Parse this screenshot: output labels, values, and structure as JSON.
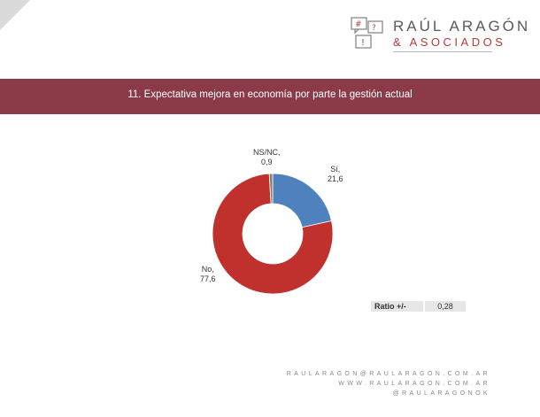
{
  "brand": {
    "name": "RAÚL ARAGÓN",
    "sub": "& ASOCIADOS",
    "accent_color": "#b13a3a"
  },
  "banner": {
    "title": "11. Expectativa mejora en economía por parte la gestión actual",
    "color": "#8b3a48"
  },
  "chart_data": {
    "type": "pie",
    "variant": "donut",
    "slices": [
      {
        "label": "Sí",
        "value": 21.6,
        "value_text": "21,6",
        "color": "#4f81bd"
      },
      {
        "label": "No",
        "value": 77.6,
        "value_text": "77,6",
        "color": "#c0302c"
      },
      {
        "label": "NS/NC",
        "value": 0.9,
        "value_text": "0,9",
        "color": "#8c7f6e"
      }
    ]
  },
  "ratio": {
    "label": "Ratio +/-",
    "value": "0,28"
  },
  "footer": {
    "email": "RAULARAGON@RAULARAGON.COM.AR",
    "web": "WWW.RAULARAGON.COM.AR",
    "handle": "@RAULARAGONOK"
  }
}
